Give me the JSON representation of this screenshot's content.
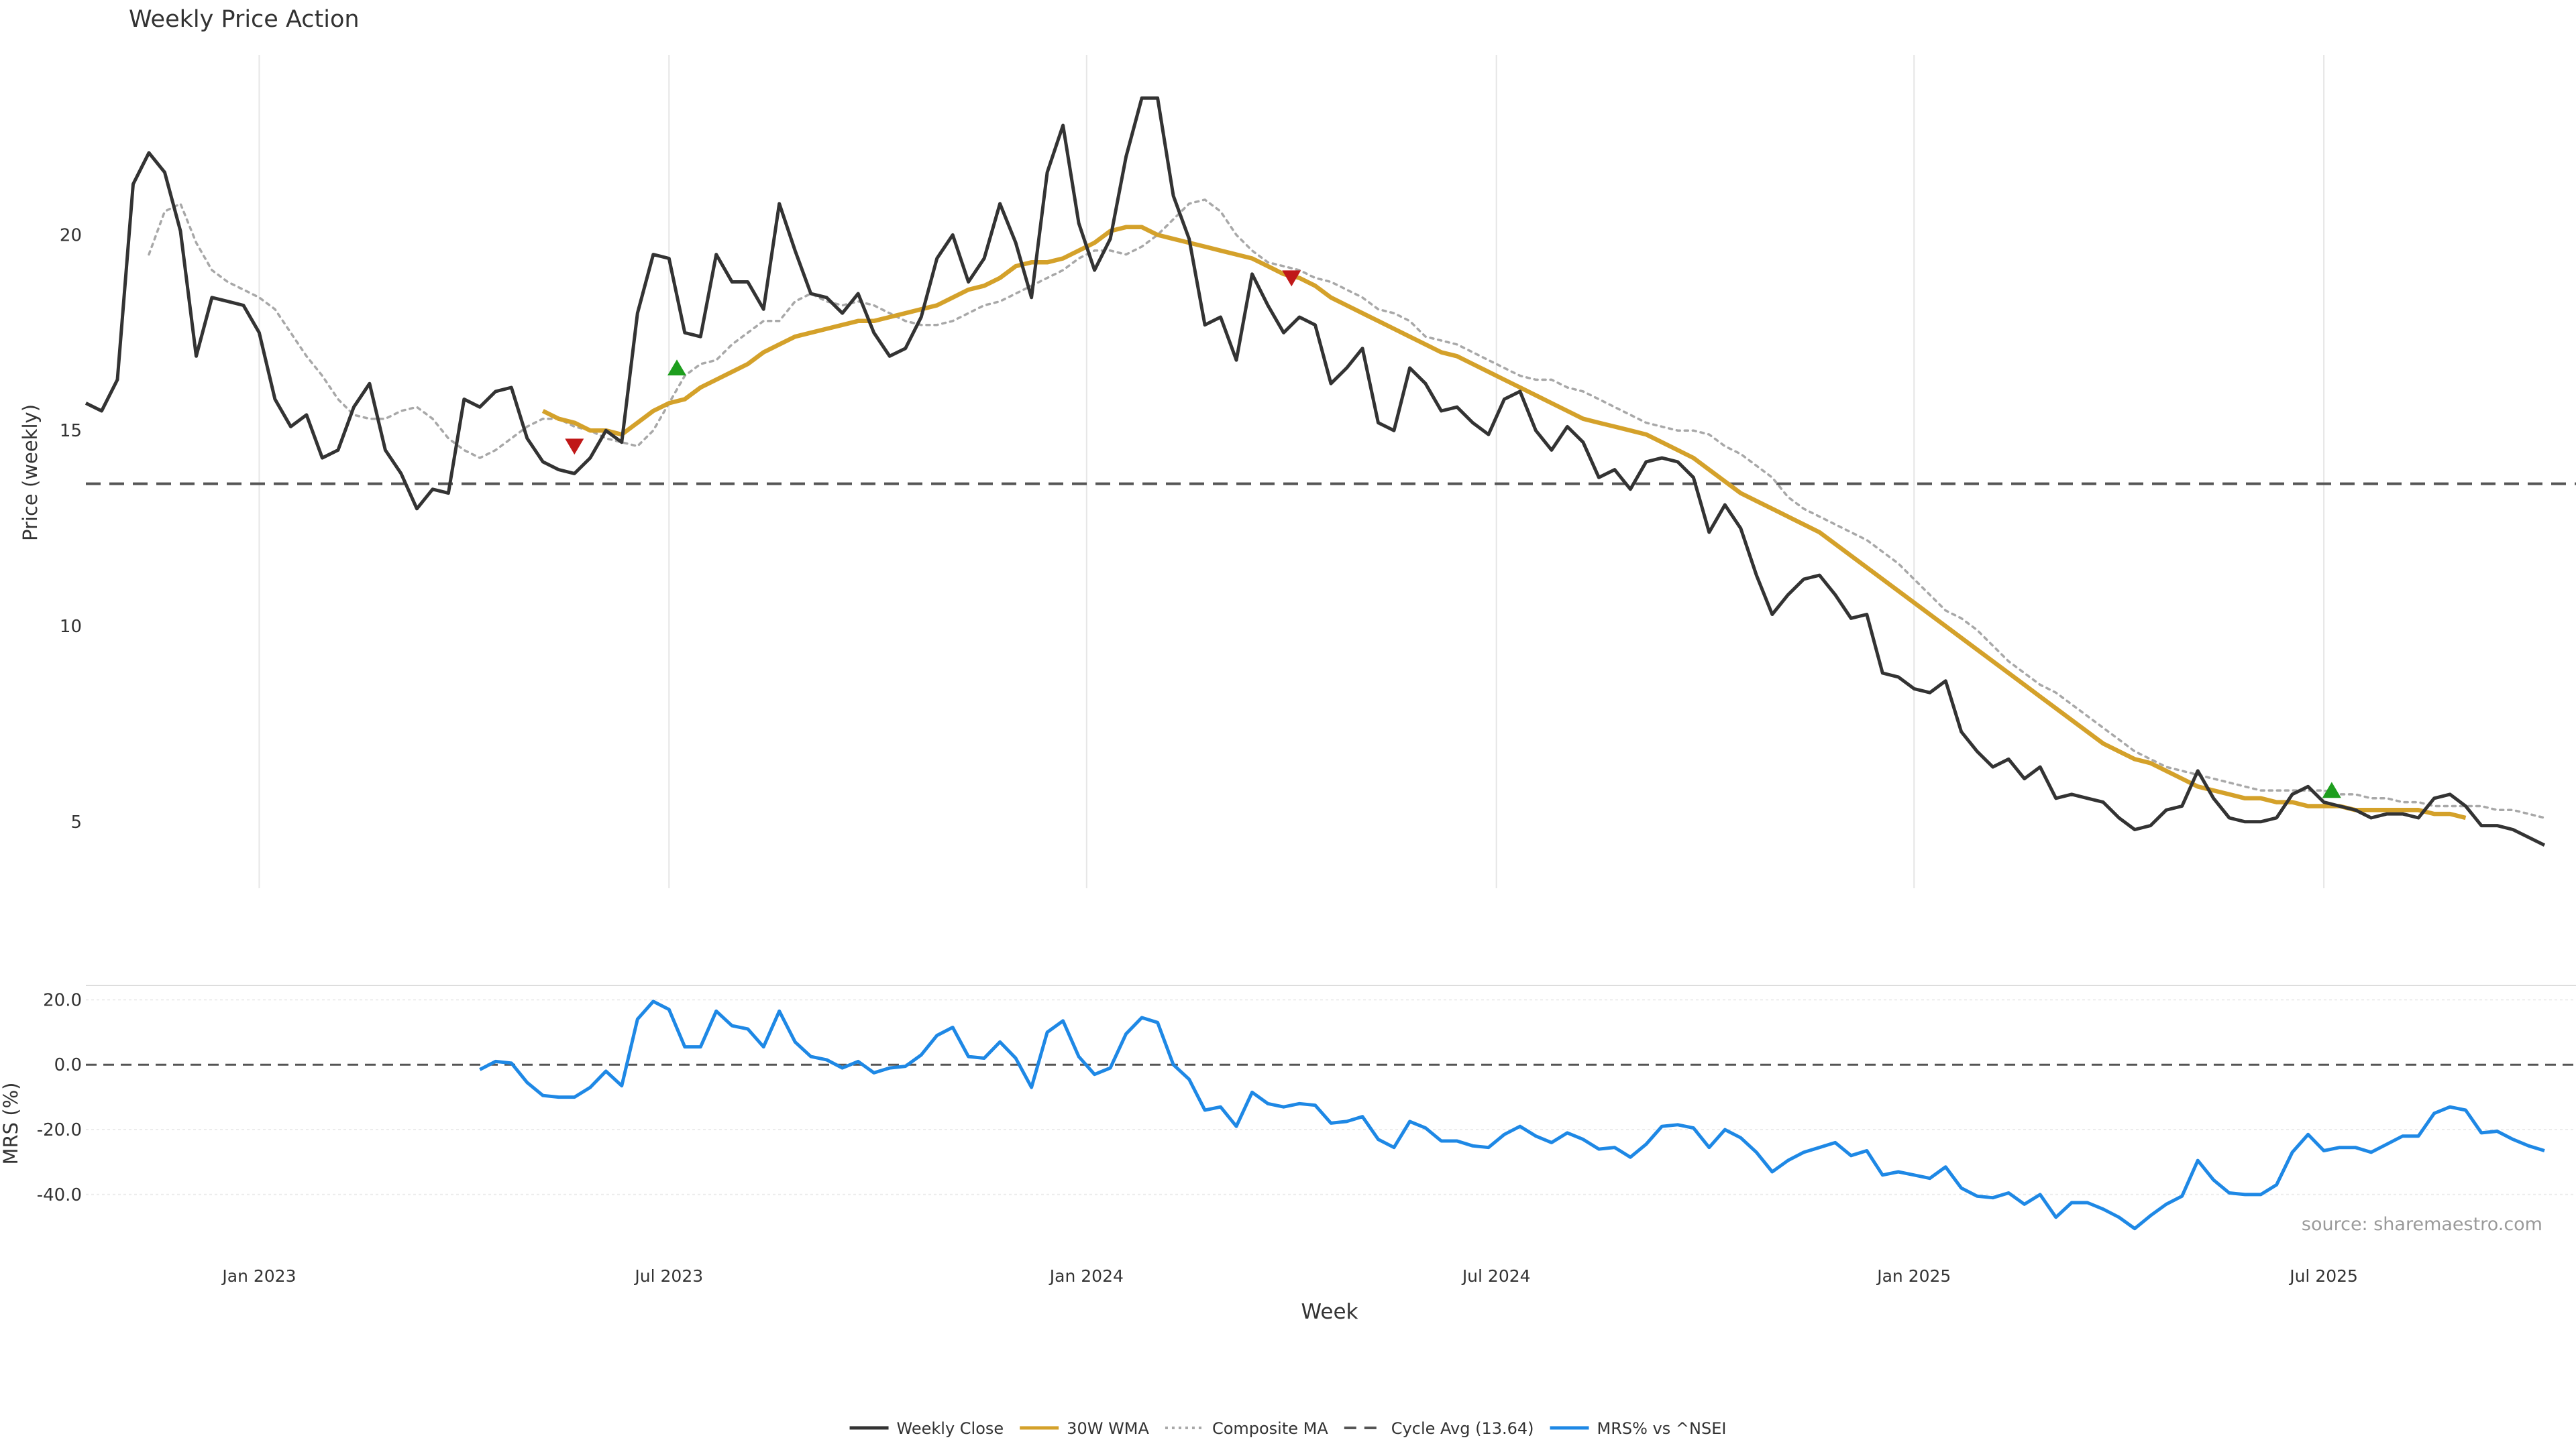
{
  "chart_data": {
    "type": "line",
    "title": "Weekly Price Action",
    "source": "source: sharemaestro.com",
    "xlabel": "Week",
    "colors": {
      "close": "#333333",
      "wma": "#D4A12A",
      "composite": "#A8A8A8",
      "cycle": "#555555",
      "mrs": "#1E88E5",
      "buy": "#1E9E1E",
      "sell": "#C01818",
      "grid": "#E6E6E6"
    },
    "x_ticks": [
      {
        "label": "Jan 2023",
        "week": 11
      },
      {
        "label": "Jul 2023",
        "week": 37
      },
      {
        "label": "Jan 2024",
        "week": 63.5
      },
      {
        "label": "Jul 2024",
        "week": 89.5
      },
      {
        "label": "Jan 2025",
        "week": 116
      },
      {
        "label": "Jul 2025",
        "week": 142
      }
    ],
    "xlim": [
      0,
      158
    ],
    "price_panel": {
      "ylabel": "Price (weekly)",
      "ylim": [
        3.3,
        24.6
      ],
      "yticks": [
        5,
        10,
        15,
        20
      ],
      "cycle_avg": 13.64
    },
    "mrs_panel": {
      "ylabel": "MRS (%)",
      "ylim": [
        -52,
        24
      ],
      "yticks": [
        20.0,
        0.0,
        -20.0,
        -40.0
      ],
      "zero_line": 0.0
    },
    "legend": [
      {
        "label": "Weekly Close",
        "key": "close",
        "style": "solid"
      },
      {
        "label": "30W WMA",
        "key": "wma",
        "style": "solid"
      },
      {
        "label": "Composite MA",
        "key": "composite",
        "style": "dotted"
      },
      {
        "label": "Cycle Avg (13.64)",
        "key": "cycle",
        "style": "dashed"
      },
      {
        "label": "MRS% vs ^NSEI",
        "key": "mrs",
        "style": "solid"
      }
    ],
    "series": [
      {
        "name": "Weekly Close",
        "key": "close",
        "start": 0,
        "values": [
          15.7,
          15.5,
          16.3,
          21.3,
          22.1,
          21.6,
          20.1,
          16.9,
          18.4,
          18.3,
          18.2,
          17.5,
          15.8,
          15.1,
          15.4,
          14.3,
          14.5,
          15.6,
          16.2,
          14.5,
          13.9,
          13.0,
          13.5,
          13.4,
          15.8,
          15.6,
          16.0,
          16.1,
          14.8,
          14.2,
          14.0,
          13.9,
          14.3,
          15.0,
          14.7,
          18.0,
          19.5,
          19.4,
          17.5,
          17.4,
          19.5,
          18.8,
          18.8,
          18.1,
          20.8,
          19.6,
          18.5,
          18.4,
          18.0,
          18.5,
          17.5,
          16.9,
          17.1,
          17.9,
          19.4,
          20.0,
          18.8,
          19.4,
          20.8,
          19.8,
          18.4,
          21.6,
          22.8,
          20.3,
          19.1,
          19.9,
          22.0,
          23.5,
          23.5,
          21.0,
          19.9,
          17.7,
          17.9,
          16.8,
          19.0,
          18.2,
          17.5,
          17.9,
          17.7,
          16.2,
          16.6,
          17.1,
          15.2,
          15.0,
          16.6,
          16.2,
          15.5,
          15.6,
          15.2,
          14.9,
          15.8,
          16.0,
          15.0,
          14.5,
          15.1,
          14.7,
          13.8,
          14.0,
          13.5,
          14.2,
          14.3,
          14.2,
          13.8,
          12.4,
          13.1,
          12.5,
          11.3,
          10.3,
          10.8,
          11.2,
          11.3,
          10.8,
          10.2,
          10.3,
          8.8,
          8.7,
          8.4,
          8.3,
          8.6,
          7.3,
          6.8,
          6.4,
          6.6,
          6.1,
          6.4,
          5.6,
          5.7,
          5.6,
          5.5,
          5.1,
          4.8,
          4.9,
          5.3,
          5.4,
          6.3,
          5.6,
          5.1,
          5.0,
          5.0,
          5.1,
          5.7,
          5.9,
          5.5,
          5.4,
          5.3,
          5.1,
          5.2,
          5.2,
          5.1,
          5.6,
          5.7,
          5.4,
          4.9,
          4.9,
          4.8,
          4.6,
          4.4
        ]
      },
      {
        "name": "30W WMA",
        "key": "wma",
        "start": 29,
        "values": [
          15.5,
          15.3,
          15.2,
          15.0,
          15.0,
          14.9,
          15.2,
          15.5,
          15.7,
          15.8,
          16.1,
          16.3,
          16.5,
          16.7,
          17.0,
          17.2,
          17.4,
          17.5,
          17.6,
          17.7,
          17.8,
          17.8,
          17.9,
          18.0,
          18.1,
          18.2,
          18.4,
          18.6,
          18.7,
          18.9,
          19.2,
          19.3,
          19.3,
          19.4,
          19.6,
          19.8,
          20.1,
          20.2,
          20.2,
          20.0,
          19.9,
          19.8,
          19.7,
          19.6,
          19.5,
          19.4,
          19.2,
          19.0,
          18.9,
          18.7,
          18.4,
          18.2,
          18.0,
          17.8,
          17.6,
          17.4,
          17.2,
          17.0,
          16.9,
          16.7,
          16.5,
          16.3,
          16.1,
          15.9,
          15.7,
          15.5,
          15.3,
          15.2,
          15.1,
          15.0,
          14.9,
          14.7,
          14.5,
          14.3,
          14.0,
          13.7,
          13.4,
          13.2,
          13.0,
          12.8,
          12.6,
          12.4,
          12.1,
          11.8,
          11.5,
          11.2,
          10.9,
          10.6,
          10.3,
          10.0,
          9.7,
          9.4,
          9.1,
          8.8,
          8.5,
          8.2,
          7.9,
          7.6,
          7.3,
          7.0,
          6.8,
          6.6,
          6.5,
          6.3,
          6.1,
          5.9,
          5.8,
          5.7,
          5.6,
          5.6,
          5.5,
          5.5,
          5.4,
          5.4,
          5.4,
          5.3,
          5.3,
          5.3,
          5.3,
          5.3,
          5.2,
          5.2,
          5.1
        ]
      },
      {
        "name": "Composite MA",
        "key": "composite",
        "start": 4,
        "values": [
          19.5,
          20.6,
          20.8,
          19.8,
          19.1,
          18.8,
          18.6,
          18.4,
          18.1,
          17.5,
          16.9,
          16.4,
          15.8,
          15.4,
          15.3,
          15.3,
          15.5,
          15.6,
          15.3,
          14.8,
          14.5,
          14.3,
          14.5,
          14.8,
          15.1,
          15.3,
          15.3,
          15.1,
          15.0,
          14.8,
          14.7,
          14.6,
          15.0,
          15.7,
          16.4,
          16.7,
          16.8,
          17.2,
          17.5,
          17.8,
          17.8,
          18.3,
          18.5,
          18.3,
          18.2,
          18.3,
          18.2,
          18.0,
          17.8,
          17.7,
          17.7,
          17.8,
          18.0,
          18.2,
          18.3,
          18.5,
          18.7,
          18.9,
          19.1,
          19.4,
          19.6,
          19.6,
          19.5,
          19.7,
          20.0,
          20.4,
          20.8,
          20.9,
          20.6,
          20.0,
          19.6,
          19.3,
          19.2,
          19.1,
          18.9,
          18.8,
          18.6,
          18.4,
          18.1,
          18.0,
          17.8,
          17.4,
          17.3,
          17.2,
          17.0,
          16.8,
          16.6,
          16.4,
          16.3,
          16.3,
          16.1,
          16.0,
          15.8,
          15.6,
          15.4,
          15.2,
          15.1,
          15.0,
          15.0,
          14.9,
          14.6,
          14.4,
          14.1,
          13.8,
          13.3,
          13.0,
          12.8,
          12.6,
          12.4,
          12.2,
          11.9,
          11.6,
          11.2,
          10.8,
          10.4,
          10.2,
          9.9,
          9.5,
          9.1,
          8.8,
          8.5,
          8.3,
          8.0,
          7.7,
          7.4,
          7.1,
          6.8,
          6.6,
          6.4,
          6.3,
          6.2,
          6.1,
          6.0,
          5.9,
          5.8,
          5.8,
          5.8,
          5.8,
          5.8,
          5.7,
          5.7,
          5.6,
          5.6,
          5.5,
          5.5,
          5.4,
          5.4,
          5.4,
          5.4,
          5.3,
          5.3,
          5.2,
          5.1
        ]
      },
      {
        "name": "MRS% vs ^NSEI",
        "key": "mrs",
        "start": 25,
        "values": [
          -1.5,
          1.0,
          0.5,
          -5.5,
          -9.5,
          -10.0,
          -10.0,
          -7.0,
          -2.0,
          -6.5,
          14.0,
          19.5,
          17.0,
          5.5,
          5.5,
          16.5,
          12.0,
          11.0,
          5.5,
          16.5,
          7.0,
          2.5,
          1.5,
          -1.0,
          1.0,
          -2.5,
          -1.0,
          -0.5,
          3.0,
          9.0,
          11.5,
          2.5,
          2.0,
          7.0,
          2.0,
          -7.0,
          10.0,
          13.5,
          2.5,
          -3.0,
          -1.0,
          9.5,
          14.5,
          13.0,
          0.0,
          -4.5,
          -14.0,
          -13.0,
          -19.0,
          -8.5,
          -12.0,
          -13.0,
          -12.0,
          -12.5,
          -18.0,
          -17.5,
          -16.0,
          -23.0,
          -25.5,
          -17.5,
          -19.5,
          -23.5,
          -23.5,
          -25.0,
          -25.5,
          -21.5,
          -19.0,
          -22.0,
          -24.0,
          -21.0,
          -23.0,
          -26.0,
          -25.5,
          -28.5,
          -24.5,
          -19.0,
          -18.5,
          -19.5,
          -25.5,
          -20.0,
          -22.5,
          -27.0,
          -33.0,
          -29.5,
          -27.0,
          -25.5,
          -24.0,
          -28.0,
          -26.5,
          -34.0,
          -33.0,
          -34.0,
          -35.0,
          -31.5,
          -38.0,
          -40.5,
          -41.0,
          -39.5,
          -43.0,
          -40.0,
          -47.0,
          -42.5,
          -42.5,
          -44.5,
          -47.0,
          -50.5,
          -46.5,
          -43.0,
          -40.5,
          -29.5,
          -35.5,
          -39.5,
          -40.0,
          -40.0,
          -37.0,
          -27.0,
          -21.5,
          -26.5,
          -25.5,
          -25.5,
          -27.0,
          -24.5,
          -22.0,
          -22.0,
          -15.0,
          -13.0,
          -14.0,
          -21.0,
          -20.5,
          -23.0,
          -25.0,
          -26.5
        ]
      }
    ],
    "signals": [
      {
        "type": "sell",
        "week": 31,
        "value": 14.6
      },
      {
        "type": "buy",
        "week": 37.5,
        "value": 16.6
      },
      {
        "type": "sell",
        "week": 76.5,
        "value": 18.9
      },
      {
        "type": "buy",
        "week": 142.5,
        "value": 5.8
      }
    ]
  }
}
